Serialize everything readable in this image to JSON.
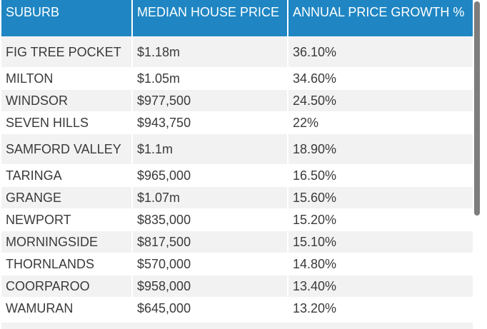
{
  "table": {
    "headers": {
      "suburb": "SUBURB",
      "median_house_price": "MEDIAN HOUSE PRICE",
      "annual_price_growth": "ANNUAL PRICE GROWTH %"
    },
    "rows": [
      {
        "suburb": "FIG TREE POCKET",
        "price": "$1.18m",
        "growth": "36.10%"
      },
      {
        "suburb": "MILTON",
        "price": "$1.05m",
        "growth": "34.60%"
      },
      {
        "suburb": "WINDSOR",
        "price": "$977,500",
        "growth": "24.50%"
      },
      {
        "suburb": "SEVEN HILLS",
        "price": "$943,750",
        "growth": "22%"
      },
      {
        "suburb": "SAMFORD VALLEY",
        "price": "$1.1m",
        "growth": "18.90%"
      },
      {
        "suburb": "TARINGA",
        "price": "$965,000",
        "growth": "16.50%"
      },
      {
        "suburb": "GRANGE",
        "price": "$1.07m",
        "growth": "15.60%"
      },
      {
        "suburb": "NEWPORT",
        "price": "$835,000",
        "growth": "15.20%"
      },
      {
        "suburb": "MORNINGSIDE",
        "price": "$817,500",
        "growth": "15.10%"
      },
      {
        "suburb": "THORNLANDS",
        "price": "$570,000",
        "growth": "14.80%"
      },
      {
        "suburb": "COORPAROO",
        "price": "$958,000",
        "growth": "13.40%"
      },
      {
        "suburb": "WAMURAN",
        "price": "$645,000",
        "growth": "13.20%"
      }
    ]
  },
  "colors": {
    "header_background": "#1f86c3",
    "header_text": "#ffffff",
    "row_stripe": "#f2f2f2",
    "cell_text": "#3a3a3a",
    "scrollbar_thumb": "#7d7d7d"
  }
}
